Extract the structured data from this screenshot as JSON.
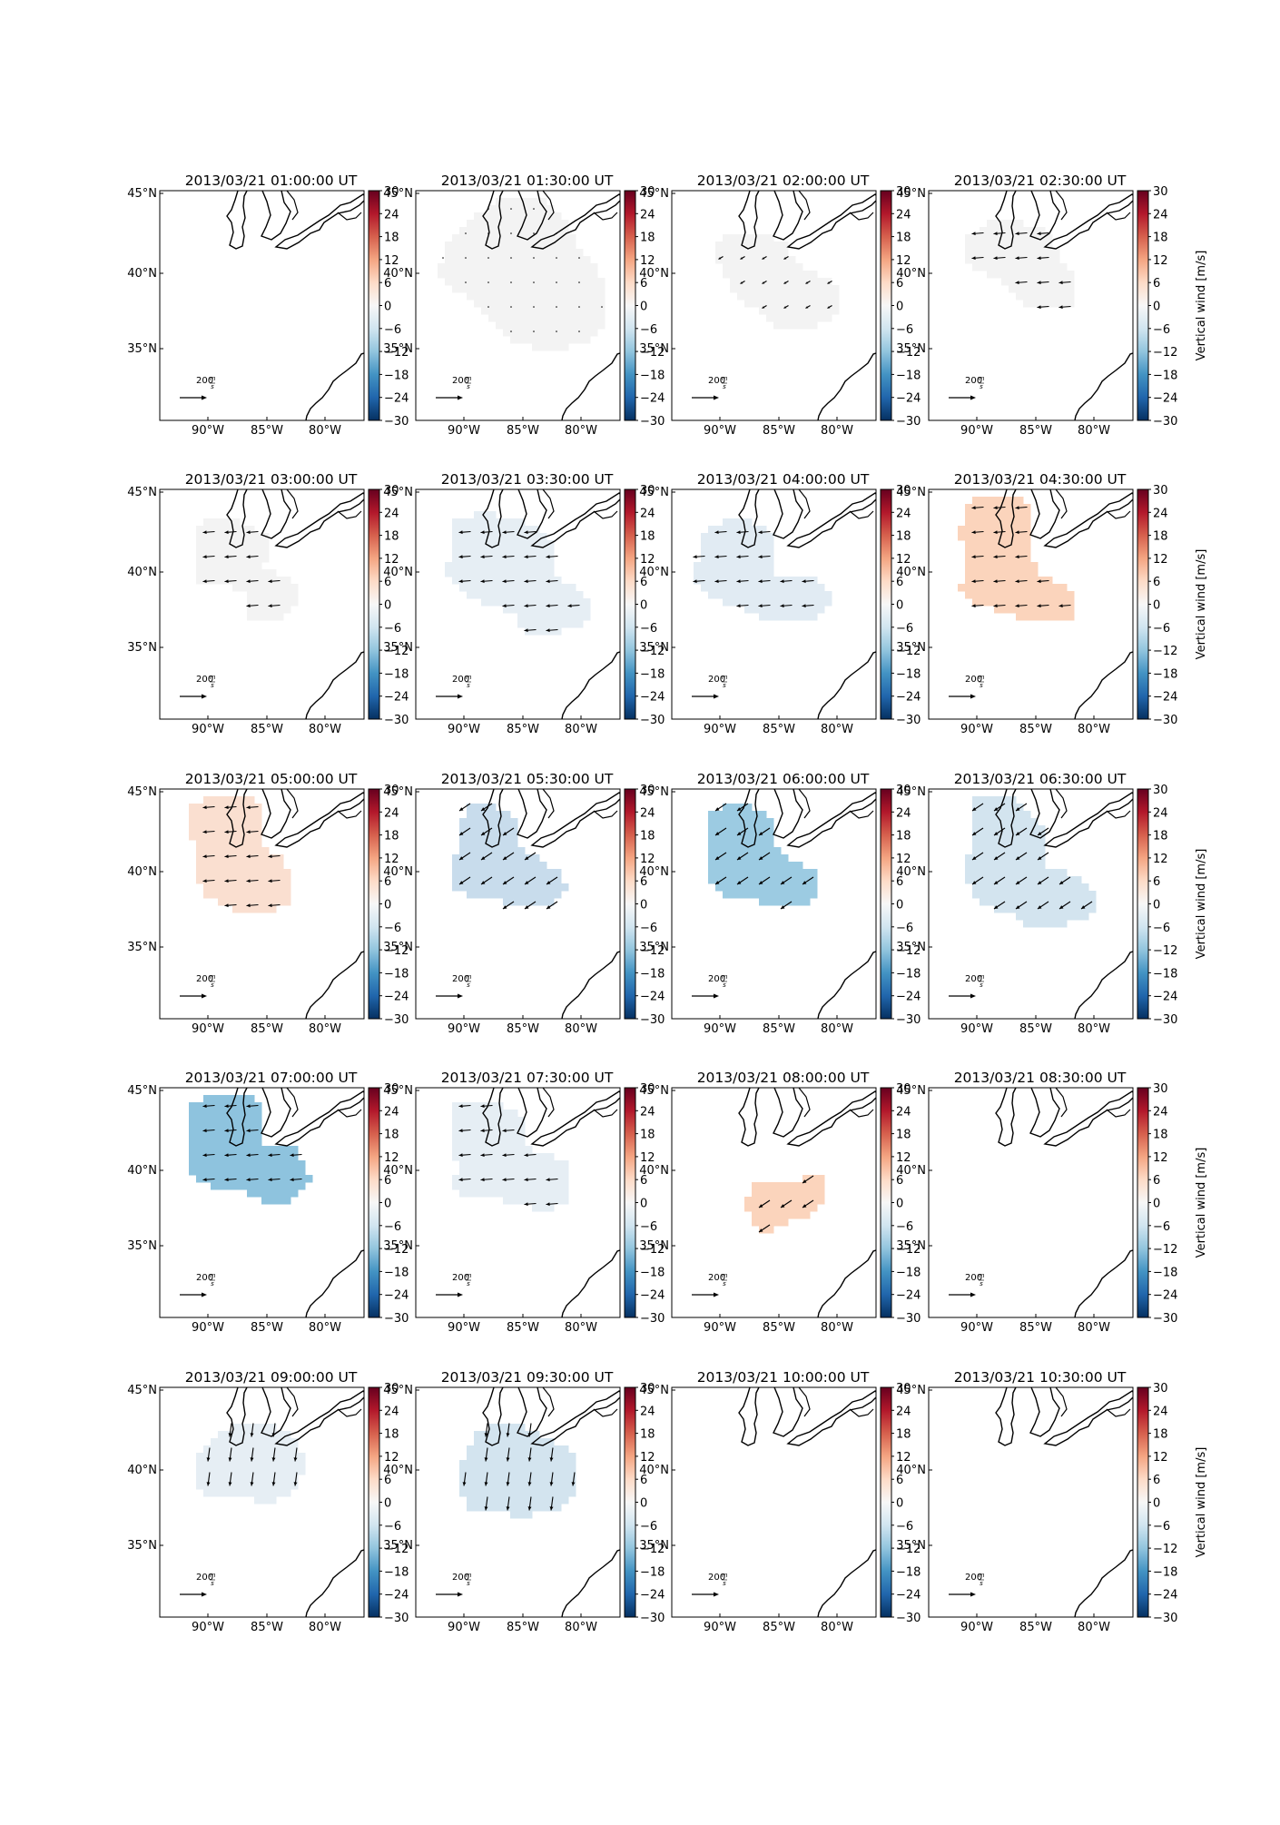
{
  "panel_titles": [
    "2013/03/21 01:00:00 UT",
    "2013/03/21 01:30:00 UT",
    "2013/03/21 02:00:00 UT",
    "2013/03/21 02:30:00 UT",
    "2013/03/21 03:00:00 UT",
    "2013/03/21 03:30:00 UT",
    "2013/03/21 04:00:00 UT",
    "2013/03/21 04:30:00 UT",
    "2013/03/21 05:00:00 UT",
    "2013/03/21 05:30:00 UT",
    "2013/03/21 06:00:00 UT",
    "2013/03/21 06:30:00 UT",
    "2013/03/21 07:00:00 UT",
    "2013/03/21 07:30:00 UT",
    "2013/03/21 08:00:00 UT",
    "2013/03/21 08:30:00 UT",
    "2013/03/21 09:00:00 UT",
    "2013/03/21 09:30:00 UT",
    "2013/03/21 10:00:00 UT",
    "2013/03/21 10:30:00 UT"
  ],
  "lon_ticks": [
    "90°W",
    "85°W",
    "80°W"
  ],
  "lat_ticks": [
    "45°N",
    "40°N",
    "35°N"
  ],
  "colorbar_ticks": [
    "30",
    "24",
    "18",
    "12",
    "6",
    "0",
    "−6",
    "−12",
    "−18",
    "−24",
    "−30"
  ],
  "colorbar_label": "Vertical wind [m/s]",
  "colorbar_range": [
    -30,
    30
  ],
  "reference_arrow": {
    "value": "200",
    "unit_numerator": "m",
    "unit_denominator": "s"
  },
  "colors": {
    "neutral": "#f3f3f3",
    "very_light_blue": "#e6eef4",
    "light_blue": "#d3e4ef",
    "light_orange": "#fbd4bc",
    "pale_orange": "#fadfd0",
    "light_blue_2": "#c8dcec",
    "medium_blue": "#9ccbe2",
    "medium_blue_2": "#8ec3de",
    "pale_blue": "#e1ebf3",
    "colorbar_stops": [
      "#053061",
      "#2166ac",
      "#4393c3",
      "#92c5de",
      "#d1e5f0",
      "#f7f7f7",
      "#fddbc7",
      "#f4a582",
      "#d6604d",
      "#b2182b",
      "#67001f"
    ]
  },
  "chart_data": {
    "type": "heatmap",
    "description_fields": "vertical wind (color) and horizontal wind vectors (arrows)",
    "panels": [
      {
        "time": "01:00:00",
        "vertical_wind": null
      },
      {
        "time": "01:30:00",
        "vertical_wind": 0
      },
      {
        "time": "02:00:00",
        "vertical_wind": 0
      },
      {
        "time": "02:30:00",
        "vertical_wind": 0
      },
      {
        "time": "03:00:00",
        "vertical_wind": 0
      },
      {
        "time": "03:30:00",
        "vertical_wind": -2
      },
      {
        "time": "04:00:00",
        "vertical_wind": -1
      },
      {
        "time": "04:30:00",
        "vertical_wind": 7
      },
      {
        "time": "05:00:00",
        "vertical_wind": 4
      },
      {
        "time": "05:30:00",
        "vertical_wind": -6
      },
      {
        "time": "06:00:00",
        "vertical_wind": -13
      },
      {
        "time": "06:30:00",
        "vertical_wind": -5
      },
      {
        "time": "07:00:00",
        "vertical_wind": -11
      },
      {
        "time": "07:30:00",
        "vertical_wind": -2
      },
      {
        "time": "08:00:00",
        "vertical_wind": 6
      },
      {
        "time": "08:30:00",
        "vertical_wind": null
      },
      {
        "time": "09:00:00",
        "vertical_wind": -3
      },
      {
        "time": "09:30:00",
        "vertical_wind": -4
      },
      {
        "time": "10:00:00",
        "vertical_wind": null
      },
      {
        "time": "10:30:00",
        "vertical_wind": null
      }
    ]
  }
}
